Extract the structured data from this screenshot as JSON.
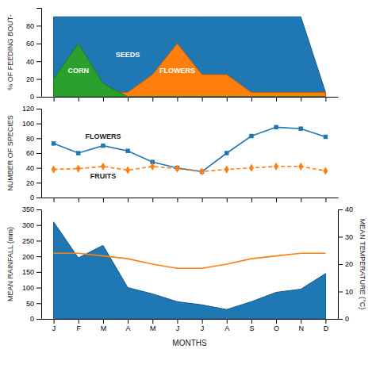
{
  "chart_data": [
    {
      "type": "area",
      "y_label": "% OF FEEDING BOUT-",
      "categories": [
        null,
        null,
        null,
        null,
        null,
        null,
        null,
        null,
        null,
        null,
        null,
        null
      ],
      "series": [
        {
          "name": "SEEDS",
          "values": [
            90,
            90,
            90,
            90,
            90,
            90,
            90,
            90,
            90,
            90,
            90,
            5
          ]
        },
        {
          "name": "FLOWERS",
          "values": [
            5,
            5,
            5,
            5,
            25,
            60,
            25,
            25,
            5,
            5,
            5,
            5
          ]
        },
        {
          "name": "CORN",
          "values": [
            20,
            60,
            15,
            0,
            0,
            0,
            0,
            0,
            0,
            0,
            0,
            0
          ]
        }
      ],
      "ylim": [
        0,
        100
      ],
      "yticks": [
        0,
        20,
        40,
        60,
        80
      ],
      "tick_labels": "y"
    },
    {
      "type": "line",
      "y_label": "NUMBER OF SPECIES",
      "categories": [
        null,
        null,
        null,
        null,
        null,
        null,
        null,
        null,
        null,
        null,
        null,
        null
      ],
      "series": [
        {
          "name": "FLOWERS",
          "values": [
            73,
            60,
            70,
            63,
            48,
            40,
            35,
            60,
            83,
            95,
            93,
            82
          ],
          "marker": "square",
          "line_style": "solid"
        },
        {
          "name": "FRUITS",
          "values": [
            38,
            39,
            42,
            37,
            42,
            39,
            35,
            38,
            40,
            42,
            42,
            36
          ],
          "marker": "diamond",
          "line_style": "dashed"
        }
      ],
      "ylim": [
        0,
        120
      ],
      "yticks": [
        0,
        20,
        40,
        60,
        80,
        100,
        120
      ],
      "tick_labels": "y"
    },
    {
      "type": "area",
      "x_label": "MONTHS",
      "y_label": "MEAN RAINFALL (mm)",
      "y2_label": "MEAN TEMPERATURE (°C)",
      "categories": [
        "J",
        "F",
        "M",
        "A",
        "M",
        "J",
        "J",
        "A",
        "S",
        "O",
        "N",
        "D"
      ],
      "series": [
        {
          "type": "area",
          "values": [
            310,
            195,
            235,
            100,
            80,
            55,
            45,
            30,
            55,
            85,
            95,
            145
          ]
        },
        {
          "type": "line",
          "axis": "y2",
          "values": [
            24,
            24,
            23,
            22,
            20,
            18.5,
            18.5,
            20,
            22,
            23,
            24,
            24
          ]
        }
      ],
      "ylim": [
        0,
        350
      ],
      "yticks": [
        0,
        50,
        100,
        150,
        200,
        250,
        300,
        350
      ],
      "y2lim": [
        0,
        40
      ],
      "y2ticks": [
        0,
        10,
        20,
        30,
        40
      ]
    }
  ]
}
